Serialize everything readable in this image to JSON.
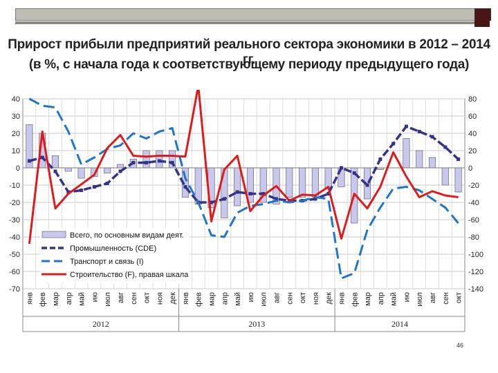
{
  "title_line1": "Прирост прибыли предприятий реального сектора экономики в 2012 – 2014 гг.",
  "title_line2": "(в %, с начала года к соответствующему периоду предыдущего года)",
  "slide_number": "46",
  "chart_data": {
    "type": "bar",
    "categories": [
      "янв",
      "фев",
      "мар",
      "апр",
      "май",
      "июн",
      "июл",
      "авг",
      "сен",
      "окт",
      "ноя",
      "дек",
      "янв",
      "фев",
      "мар",
      "апр",
      "май",
      "июн",
      "июл",
      "авг",
      "сен",
      "окт",
      "ноя",
      "дек",
      "янв",
      "фев",
      "мар",
      "апр",
      "май",
      "июн",
      "июл",
      "авг",
      "сен",
      "окт"
    ],
    "category_labels": [
      "янв",
      "фев",
      "мар",
      "апр",
      "май",
      "ию",
      "июл",
      "авг",
      "сен",
      "окт",
      "ноя",
      "дек",
      "янв",
      "фев",
      "мар",
      "апр",
      "май",
      "ию",
      "июл",
      "авг",
      "сен",
      "окт",
      "ноя",
      "дек",
      "янв",
      "фев",
      "мар",
      "апр",
      "май",
      "ию",
      "июл",
      "авг",
      "сен",
      "окт"
    ],
    "years": [
      {
        "label": "2012",
        "start": 0,
        "end": 11
      },
      {
        "label": "2013",
        "start": 12,
        "end": 23
      },
      {
        "label": "2014",
        "start": 24,
        "end": 33
      }
    ],
    "left_axis": {
      "min": -70,
      "max": 40,
      "ticks": [
        40,
        30,
        20,
        10,
        0,
        -10,
        -20,
        -30,
        -40,
        -50,
        -60,
        -70
      ]
    },
    "right_axis": {
      "min": -140,
      "max": 80,
      "ticks": [
        80,
        60,
        40,
        20,
        0,
        -20,
        -40,
        -60,
        -80,
        -100,
        -120,
        -140
      ]
    },
    "grid": true,
    "legend_position": "bottom-left",
    "series": [
      {
        "name": "Всего, по основным видам деят.",
        "kind": "bar",
        "axis": "left",
        "color": "#c8c8ee",
        "values": [
          25,
          20,
          7,
          -2,
          -6,
          -5,
          -3,
          2,
          5,
          10,
          10,
          10,
          -17,
          -21,
          -23,
          -29,
          -22,
          -20,
          -20,
          -21,
          -17,
          -17,
          -17,
          -12,
          -11,
          -32,
          -18,
          -1,
          0,
          17,
          10,
          6,
          -10,
          -14
        ]
      },
      {
        "name": "Промышленность (CDE)",
        "kind": "line",
        "axis": "left",
        "color": "#33338a",
        "values": [
          4,
          6,
          -2,
          -14,
          -13,
          -11,
          -9,
          -2,
          3,
          3,
          4,
          3,
          -11,
          -20,
          -20,
          -18,
          -14,
          -15,
          -15,
          -18,
          -19,
          -19,
          -18,
          -15,
          0,
          -3,
          -10,
          5,
          14,
          24,
          21,
          18,
          12,
          5
        ]
      },
      {
        "name": "Транспорт и связь (I)",
        "kind": "line",
        "axis": "left",
        "color": "#1f75c7",
        "values": [
          40,
          36,
          35,
          21,
          2,
          6,
          11,
          13,
          20,
          17,
          21,
          23,
          -6,
          -20,
          -39,
          -40,
          -26,
          -22,
          -21,
          -19,
          -20,
          -19,
          -17,
          -18,
          -64,
          -61,
          -36,
          -23,
          -12,
          -11,
          -13,
          -18,
          -23,
          -32
        ]
      },
      {
        "name": "Строительство (F), правая шкала",
        "kind": "line",
        "axis": "right",
        "color": "#e01a1a",
        "values": [
          -88,
          42,
          -47,
          -30,
          -19,
          -8,
          23,
          38,
          14,
          13,
          14,
          14,
          13,
          95,
          -62,
          -2,
          14,
          -50,
          -32,
          -21,
          -38,
          -31,
          -32,
          -22,
          -82,
          -30,
          -47,
          -22,
          18,
          -10,
          -34,
          -27,
          -32,
          -34
        ]
      }
    ]
  }
}
